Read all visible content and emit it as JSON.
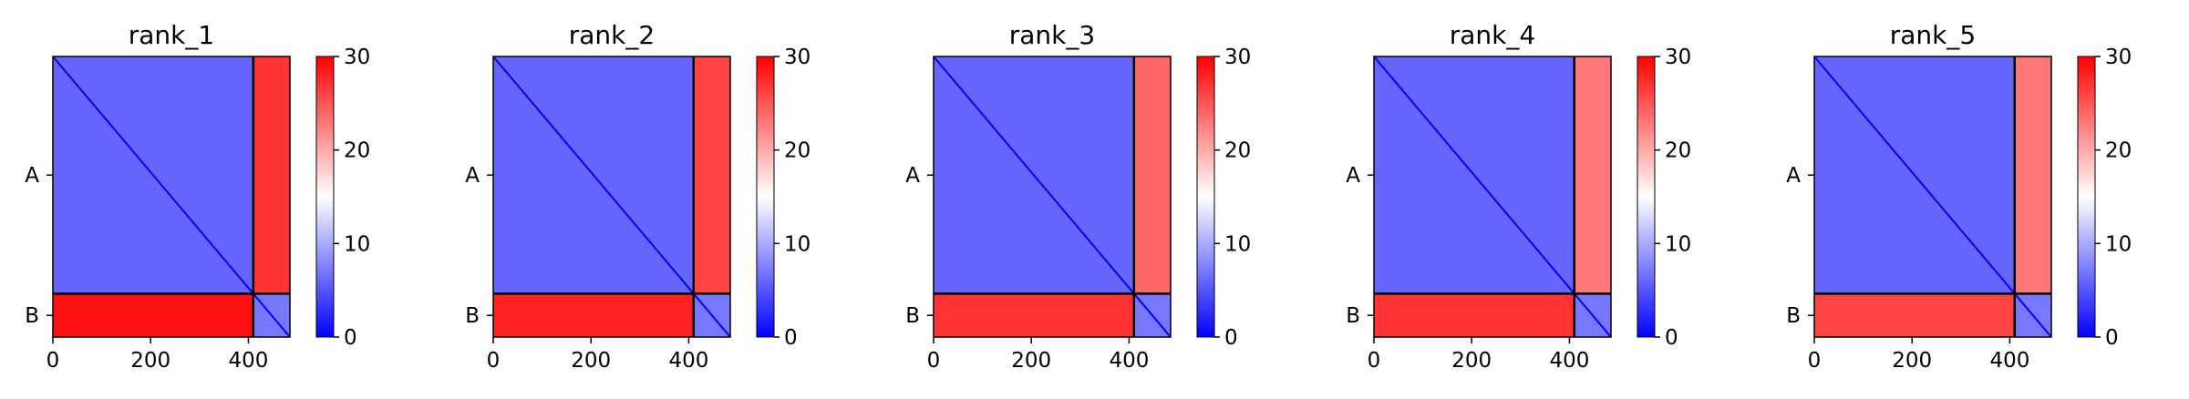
{
  "figure": {
    "colors": {
      "low": "#0000ff",
      "mid": "#ffffff",
      "high": "#ff0000",
      "frame": "#000000"
    }
  },
  "chart_data": [
    {
      "type": "heatmap",
      "title": "rank_1",
      "x": [
        0,
        200,
        400
      ],
      "xlim": [
        0,
        485
      ],
      "y_categories": [
        "A",
        "B"
      ],
      "chain_boundary": 410,
      "colorbar": {
        "min": 0,
        "max": 30,
        "ticks": [
          0,
          10,
          20,
          30
        ],
        "colormap": "bwr"
      },
      "blocks": {
        "A_A": 6,
        "A_B": 27,
        "B_A": 29,
        "B_B": 7
      }
    },
    {
      "type": "heatmap",
      "title": "rank_2",
      "x": [
        0,
        200,
        400
      ],
      "xlim": [
        0,
        485
      ],
      "y_categories": [
        "A",
        "B"
      ],
      "chain_boundary": 410,
      "colorbar": {
        "min": 0,
        "max": 30,
        "ticks": [
          0,
          10,
          20,
          30
        ],
        "colormap": "bwr"
      },
      "blocks": {
        "A_A": 6,
        "A_B": 26,
        "B_A": 28,
        "B_B": 7
      }
    },
    {
      "type": "heatmap",
      "title": "rank_3",
      "x": [
        0,
        200,
        400
      ],
      "xlim": [
        0,
        485
      ],
      "y_categories": [
        "A",
        "B"
      ],
      "chain_boundary": 410,
      "colorbar": {
        "min": 0,
        "max": 30,
        "ticks": [
          0,
          10,
          20,
          30
        ],
        "colormap": "bwr"
      },
      "blocks": {
        "A_A": 6,
        "A_B": 24,
        "B_A": 27,
        "B_B": 7
      }
    },
    {
      "type": "heatmap",
      "title": "rank_4",
      "x": [
        0,
        200,
        400
      ],
      "xlim": [
        0,
        485
      ],
      "y_categories": [
        "A",
        "B"
      ],
      "chain_boundary": 410,
      "colorbar": {
        "min": 0,
        "max": 30,
        "ticks": [
          0,
          10,
          20,
          30
        ],
        "colormap": "bwr"
      },
      "blocks": {
        "A_A": 6,
        "A_B": 23,
        "B_A": 27,
        "B_B": 7
      }
    },
    {
      "type": "heatmap",
      "title": "rank_5",
      "x": [
        0,
        200,
        400
      ],
      "xlim": [
        0,
        485
      ],
      "y_categories": [
        "A",
        "B"
      ],
      "chain_boundary": 410,
      "colorbar": {
        "min": 0,
        "max": 30,
        "ticks": [
          0,
          10,
          20,
          30
        ],
        "colormap": "bwr"
      },
      "blocks": {
        "A_A": 6,
        "A_B": 23,
        "B_A": 26,
        "B_B": 7
      }
    }
  ]
}
